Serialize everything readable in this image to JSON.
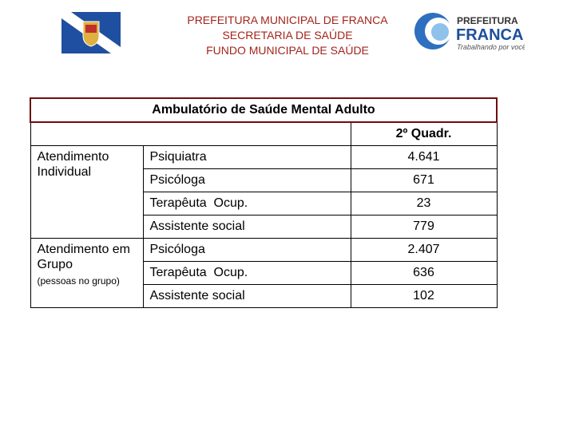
{
  "header": {
    "lines": [
      "PREFEITURA MUNICIPAL DE FRANCA",
      "SECRETARIA DE SAÚDE",
      "FUNDO MUNICIPAL DE SAÚDE"
    ]
  },
  "right_logo": {
    "top": "PREFEITURA",
    "name": "FRANCA",
    "slogan": "Trabalhando por você"
  },
  "table": {
    "title": "Ambulatório de Saúde Mental Adulto",
    "period": "2º Quadr.",
    "groups": [
      {
        "label": "Atendimento Individual",
        "rows": [
          [
            "Psiquiatra",
            "4.641"
          ],
          [
            "Psicóloga",
            "671"
          ],
          [
            "Terapêuta  Ocup.",
            "23"
          ],
          [
            "Assistente social",
            "779"
          ]
        ]
      },
      {
        "label": "Atendimento em Grupo",
        "note": "(pessoas no grupo)",
        "rows": [
          [
            "Psicóloga",
            "2.407"
          ],
          [
            "Terapêuta  Ocup.",
            "636"
          ],
          [
            "Assistente social",
            "102"
          ]
        ]
      }
    ]
  }
}
